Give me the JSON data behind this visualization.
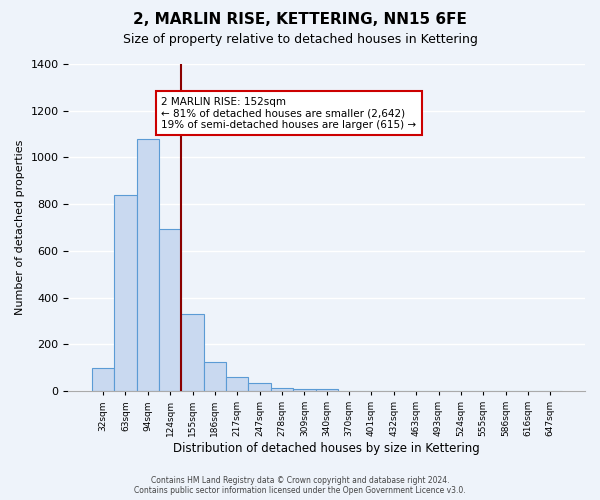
{
  "title": "2, MARLIN RISE, KETTERING, NN15 6FE",
  "subtitle": "Size of property relative to detached houses in Kettering",
  "xlabel": "Distribution of detached houses by size in Kettering",
  "ylabel": "Number of detached properties",
  "bin_labels": [
    "32sqm",
    "63sqm",
    "94sqm",
    "124sqm",
    "155sqm",
    "186sqm",
    "217sqm",
    "247sqm",
    "278sqm",
    "309sqm",
    "340sqm",
    "370sqm",
    "401sqm",
    "432sqm",
    "463sqm",
    "493sqm",
    "524sqm",
    "555sqm",
    "586sqm",
    "616sqm",
    "647sqm"
  ],
  "bar_values": [
    100,
    840,
    1080,
    695,
    330,
    125,
    60,
    35,
    15,
    10,
    10,
    0,
    0,
    0,
    0,
    0,
    0,
    0,
    0,
    0,
    0
  ],
  "bar_color": "#c9d9f0",
  "bar_edge_color": "#5b9bd5",
  "ylim": [
    0,
    1400
  ],
  "yticks": [
    0,
    200,
    400,
    600,
    800,
    1000,
    1200,
    1400
  ],
  "vline_color": "#8b0000",
  "annotation_title": "2 MARLIN RISE: 152sqm",
  "annotation_line1": "← 81% of detached houses are smaller (2,642)",
  "annotation_line2": "19% of semi-detached houses are larger (615) →",
  "annotation_box_color": "#ffffff",
  "annotation_border_color": "#cc0000",
  "footer1": "Contains HM Land Registry data © Crown copyright and database right 2024.",
  "footer2": "Contains public sector information licensed under the Open Government Licence v3.0.",
  "bg_color": "#eef3fa"
}
